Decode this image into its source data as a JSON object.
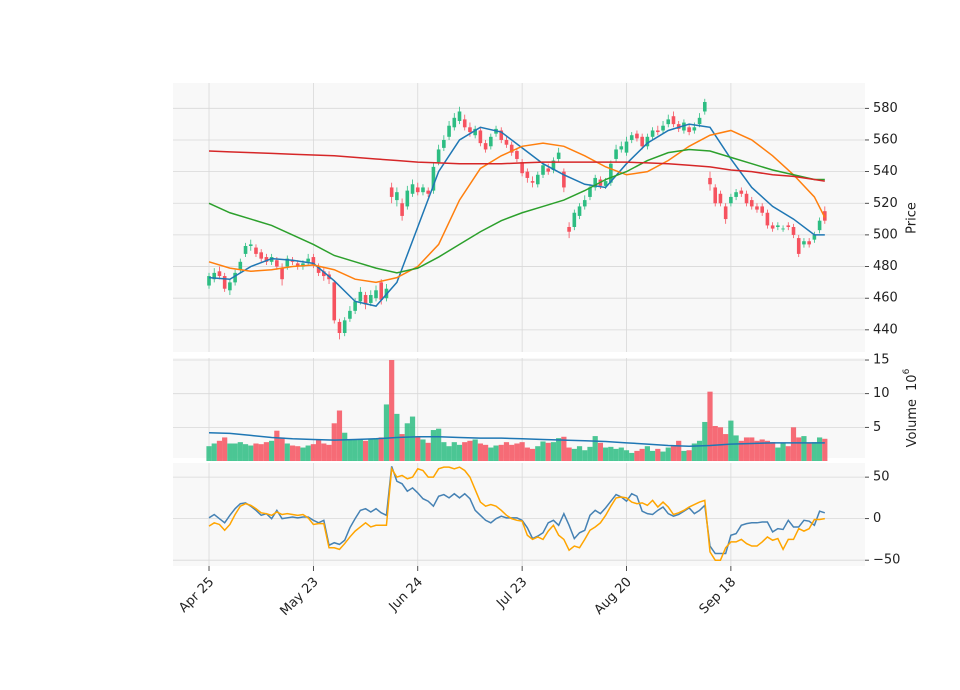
{
  "chart_data": {
    "type": "candlestick",
    "xlim": [
      -6.9,
      125.7
    ],
    "xticks": [
      {
        "value": 0,
        "label": "Apr 25"
      },
      {
        "value": 20,
        "label": "May 23"
      },
      {
        "value": 40,
        "label": "Jun 24"
      },
      {
        "value": 60,
        "label": "Jul 23"
      },
      {
        "value": 80,
        "label": "Aug 20"
      },
      {
        "value": 100,
        "label": "Sep 18"
      }
    ],
    "grid": true,
    "up_color": "#2dbd82",
    "down_color": "#f6525f",
    "ylabel": "Price",
    "ylim": [
      426,
      596
    ],
    "yticks": [
      440,
      460,
      480,
      500,
      520,
      540,
      560,
      580
    ],
    "open": [
      468,
      472,
      477,
      474,
      465,
      470,
      478,
      488,
      493,
      492,
      489,
      486,
      483,
      484,
      479,
      480,
      484,
      482,
      480,
      483,
      486,
      480,
      477,
      475,
      470,
      445,
      438,
      447,
      452,
      458,
      462,
      457,
      460,
      470,
      460,
      530,
      522,
      520,
      518,
      526,
      530,
      527,
      528,
      528,
      546,
      555,
      562,
      568,
      572,
      573,
      568,
      563,
      566,
      558,
      556,
      564,
      566,
      560,
      557,
      553,
      546,
      540,
      534,
      532,
      538,
      542,
      541,
      548,
      540,
      505,
      505,
      512,
      518,
      524,
      530,
      535,
      531,
      533,
      548,
      554,
      552,
      560,
      564,
      562,
      556,
      562,
      566,
      566,
      570,
      575,
      570,
      566,
      568,
      566,
      570,
      578,
      536,
      530,
      526,
      518,
      520,
      524,
      528,
      526,
      522,
      518,
      518,
      514,
      506,
      505,
      504,
      506,
      505,
      498,
      494,
      496,
      497,
      503,
      515
    ],
    "high": [
      476,
      479,
      480,
      476,
      472,
      478,
      485,
      495,
      497,
      494,
      491,
      488,
      488,
      486,
      482,
      487,
      486,
      484,
      484,
      488,
      488,
      482,
      479,
      477,
      471,
      447,
      448,
      455,
      460,
      467,
      464,
      465,
      468,
      472,
      469,
      533,
      530,
      523,
      531,
      535,
      533,
      532,
      530,
      546,
      557,
      563,
      572,
      577,
      581,
      576,
      571,
      569,
      568,
      560,
      564,
      569,
      568,
      562,
      559,
      555,
      548,
      542,
      537,
      540,
      546,
      545,
      549,
      555,
      542,
      508,
      516,
      520,
      525,
      532,
      538,
      537,
      536,
      547,
      557,
      559,
      562,
      565,
      566,
      564,
      564,
      568,
      569,
      572,
      576,
      578,
      572,
      573,
      570,
      571,
      577,
      586,
      540,
      532,
      528,
      520,
      526,
      529,
      530,
      528,
      524,
      520,
      520,
      516,
      508,
      508,
      506,
      508,
      507,
      500,
      498,
      498,
      502,
      511,
      518
    ],
    "low": [
      466,
      470,
      472,
      464,
      462,
      468,
      476,
      486,
      490,
      486,
      483,
      481,
      481,
      478,
      468,
      478,
      481,
      478,
      478,
      481,
      479,
      474,
      471,
      469,
      444,
      434,
      436,
      445,
      450,
      456,
      453,
      455,
      458,
      456,
      458,
      520,
      518,
      509,
      516,
      524,
      525,
      525,
      524,
      526,
      544,
      553,
      560,
      566,
      570,
      566,
      562,
      561,
      556,
      552,
      554,
      562,
      558,
      555,
      550,
      546,
      537,
      533,
      530,
      530,
      536,
      538,
      539,
      546,
      527,
      498,
      503,
      510,
      516,
      522,
      528,
      529,
      529,
      531,
      546,
      552,
      550,
      558,
      559,
      554,
      554,
      560,
      563,
      564,
      568,
      568,
      565,
      564,
      563,
      564,
      568,
      576,
      528,
      518,
      518,
      507,
      518,
      522,
      524,
      518,
      516,
      514,
      512,
      504,
      502,
      503,
      502,
      503,
      498,
      486,
      492,
      492,
      495,
      501,
      507
    ],
    "close": [
      474,
      476,
      474,
      466,
      470,
      476,
      483,
      493,
      494,
      488,
      485,
      483,
      486,
      480,
      472,
      485,
      483,
      480,
      482,
      485,
      481,
      476,
      474,
      472,
      446,
      438,
      446,
      452,
      458,
      464,
      456,
      462,
      465,
      459,
      466,
      524,
      527,
      512,
      528,
      532,
      527,
      530,
      526,
      543,
      554,
      560,
      569,
      574,
      578,
      568,
      565,
      567,
      558,
      554,
      562,
      567,
      560,
      557,
      552,
      548,
      539,
      536,
      533,
      538,
      544,
      540,
      547,
      552,
      530,
      502,
      514,
      518,
      522,
      530,
      536,
      531,
      534,
      545,
      554,
      556,
      559,
      563,
      561,
      556,
      562,
      566,
      565,
      569,
      573,
      570,
      567,
      571,
      565,
      568,
      574,
      584,
      532,
      520,
      520,
      510,
      524,
      527,
      526,
      520,
      518,
      516,
      514,
      506,
      504,
      506,
      504,
      505,
      500,
      488,
      496,
      494,
      500,
      509,
      509
    ],
    "overlay_x": [
      0,
      4,
      8,
      12,
      16,
      20,
      24,
      28,
      32,
      36,
      40,
      44,
      48,
      52,
      56,
      60,
      64,
      68,
      72,
      76,
      80,
      84,
      88,
      92,
      96,
      100,
      104,
      108,
      112,
      116,
      118
    ],
    "overlays": [
      {
        "color": "#1f77b4",
        "values": [
          473,
          472,
          480,
          485,
          484,
          482,
          471,
          458,
          455,
          470,
          505,
          540,
          560,
          568,
          565,
          555,
          545,
          538,
          532,
          530,
          545,
          558,
          566,
          570,
          568,
          548,
          530,
          518,
          510,
          500,
          500
        ]
      },
      {
        "color": "#ff7f0e",
        "values": [
          483,
          479,
          477,
          478,
          480,
          481,
          478,
          472,
          470,
          473,
          480,
          494,
          522,
          542,
          550,
          556,
          558,
          556,
          550,
          543,
          538,
          540,
          547,
          556,
          563,
          566,
          560,
          550,
          538,
          524,
          511
        ]
      },
      {
        "color": "#2ca02c",
        "values": [
          520,
          514,
          510,
          506,
          500,
          494,
          487,
          483,
          479,
          476,
          479,
          486,
          494,
          502,
          509,
          514,
          518,
          522,
          528,
          535,
          540,
          547,
          552,
          554,
          553,
          549,
          545,
          541,
          538,
          535,
          535
        ]
      },
      {
        "color": "#d62728",
        "values": [
          553,
          552.5,
          552,
          551.5,
          551,
          550.5,
          550,
          549,
          548,
          547,
          546,
          545.5,
          545,
          545,
          545,
          545.5,
          546,
          546,
          546,
          546,
          546,
          545.5,
          545,
          544,
          543,
          541,
          540,
          538,
          537,
          535,
          534
        ]
      }
    ],
    "volume": {
      "ylabel": "Volume",
      "ylabel_base": "10",
      "ylabel_exponent": "6",
      "ylim": [
        0,
        15.3
      ],
      "yticks": [
        5,
        10,
        15
      ],
      "values": [
        2.2,
        2.6,
        3.0,
        3.5,
        2.6,
        2.6,
        2.8,
        2.5,
        2.3,
        2.6,
        2.5,
        2.8,
        3.0,
        4.5,
        3.5,
        2.6,
        2.3,
        2.2,
        2.0,
        2.3,
        2.5,
        3.2,
        2.6,
        2.4,
        5.6,
        7.5,
        4.2,
        3.2,
        3.2,
        3.2,
        3.0,
        3.2,
        3.4,
        3.5,
        8.4,
        15.0,
        7.0,
        4.0,
        5.6,
        6.6,
        3.5,
        3.2,
        2.7,
        4.6,
        4.8,
        2.8,
        2.2,
        2.8,
        2.4,
        2.8,
        3.0,
        3.2,
        2.6,
        2.4,
        2.0,
        2.3,
        2.4,
        2.8,
        2.4,
        2.6,
        2.8,
        2.0,
        1.8,
        2.2,
        2.9,
        2.7,
        2.8,
        3.4,
        3.6,
        2.0,
        1.8,
        2.2,
        1.6,
        2.1,
        3.7,
        2.7,
        2.0,
        2.1,
        1.8,
        2.0,
        1.6,
        1.2,
        1.5,
        1.8,
        2.2,
        1.5,
        1.8,
        1.4,
        2.0,
        2.2,
        3.0,
        1.5,
        1.6,
        2.6,
        3.0,
        5.8,
        10.3,
        5.2,
        5.0,
        4.0,
        6.0,
        3.8,
        3.0,
        3.5,
        3.5,
        3.0,
        3.2,
        3.0,
        2.8,
        2.0,
        2.6,
        2.2,
        5.0,
        3.5,
        3.7,
        2.6,
        2.8,
        3.5,
        3.3
      ],
      "ma_color": "#1f77b4",
      "ma_values": [
        4.2,
        4.1,
        3.8,
        3.5,
        3.3,
        3.2,
        3.1,
        3.2,
        3.3,
        3.5,
        3.6,
        3.6,
        3.5,
        3.4,
        3.4,
        3.3,
        3.2,
        3.1,
        3.0,
        2.9,
        2.7,
        2.5,
        2.3,
        2.2,
        2.3,
        2.5,
        2.6,
        2.7,
        2.7,
        2.7,
        2.7
      ]
    },
    "oscillator": {
      "ylim": [
        -57,
        67
      ],
      "yticks": [
        {
          "value": -50,
          "label": "−50"
        },
        0,
        50
      ],
      "series": [
        {
          "color": "#4682b4",
          "values": [
            1,
            5,
            0,
            -5,
            4,
            12,
            18,
            19,
            15,
            10,
            4,
            6,
            0,
            10,
            0,
            1,
            2,
            1,
            2,
            2,
            -2,
            -5,
            -2,
            -32,
            -29,
            -31,
            -26,
            -11,
            0,
            10,
            12,
            8,
            12,
            7,
            4,
            63,
            45,
            42,
            33,
            37,
            31,
            24,
            21,
            15,
            27,
            29,
            25,
            30,
            25,
            30,
            24,
            10,
            4,
            -2,
            -5,
            0,
            3,
            1,
            1,
            1,
            -2,
            -11,
            -24,
            -21,
            -17,
            -5,
            -2,
            -8,
            6,
            -8,
            -24,
            -17,
            -14,
            4,
            10,
            6,
            13,
            21,
            29,
            26,
            21,
            30,
            27,
            9,
            6,
            5,
            10,
            14,
            6,
            3,
            5,
            9,
            13,
            6,
            10,
            16,
            -33,
            -42,
            -42,
            -42,
            -20,
            -18,
            -8,
            -6,
            -5,
            -5,
            -4,
            -4,
            -16,
            -12,
            -13,
            -2,
            -10,
            -10,
            -2,
            -3,
            -8,
            9,
            7
          ]
        },
        {
          "color": "#ffa500",
          "values": [
            -9,
            -5,
            -7,
            -14,
            -7,
            5,
            15,
            18,
            16,
            12,
            7,
            6,
            4,
            8,
            5,
            6,
            5,
            4,
            5,
            1,
            -7,
            -6,
            -6,
            -35,
            -35,
            -37,
            -30,
            -22,
            -15,
            -10,
            -5,
            -10,
            -8,
            -8,
            -8,
            60,
            50,
            52,
            48,
            50,
            60,
            58,
            50,
            50,
            60,
            62,
            62,
            60,
            62,
            58,
            50,
            35,
            20,
            15,
            17,
            15,
            10,
            4,
            0,
            -2,
            -3,
            -20,
            -25,
            -22,
            -25,
            -15,
            -8,
            -20,
            -25,
            -38,
            -33,
            -35,
            -25,
            -14,
            -10,
            -5,
            4,
            15,
            25,
            26,
            25,
            20,
            18,
            19,
            16,
            22,
            14,
            20,
            14,
            5,
            7,
            10,
            14,
            17,
            20,
            22,
            -40,
            -50,
            -50,
            -35,
            -28,
            -28,
            -25,
            -30,
            -33,
            -33,
            -28,
            -22,
            -26,
            -24,
            -37,
            -25,
            -25,
            -12,
            -15,
            -12,
            -1,
            -1,
            0
          ]
        }
      ]
    }
  }
}
